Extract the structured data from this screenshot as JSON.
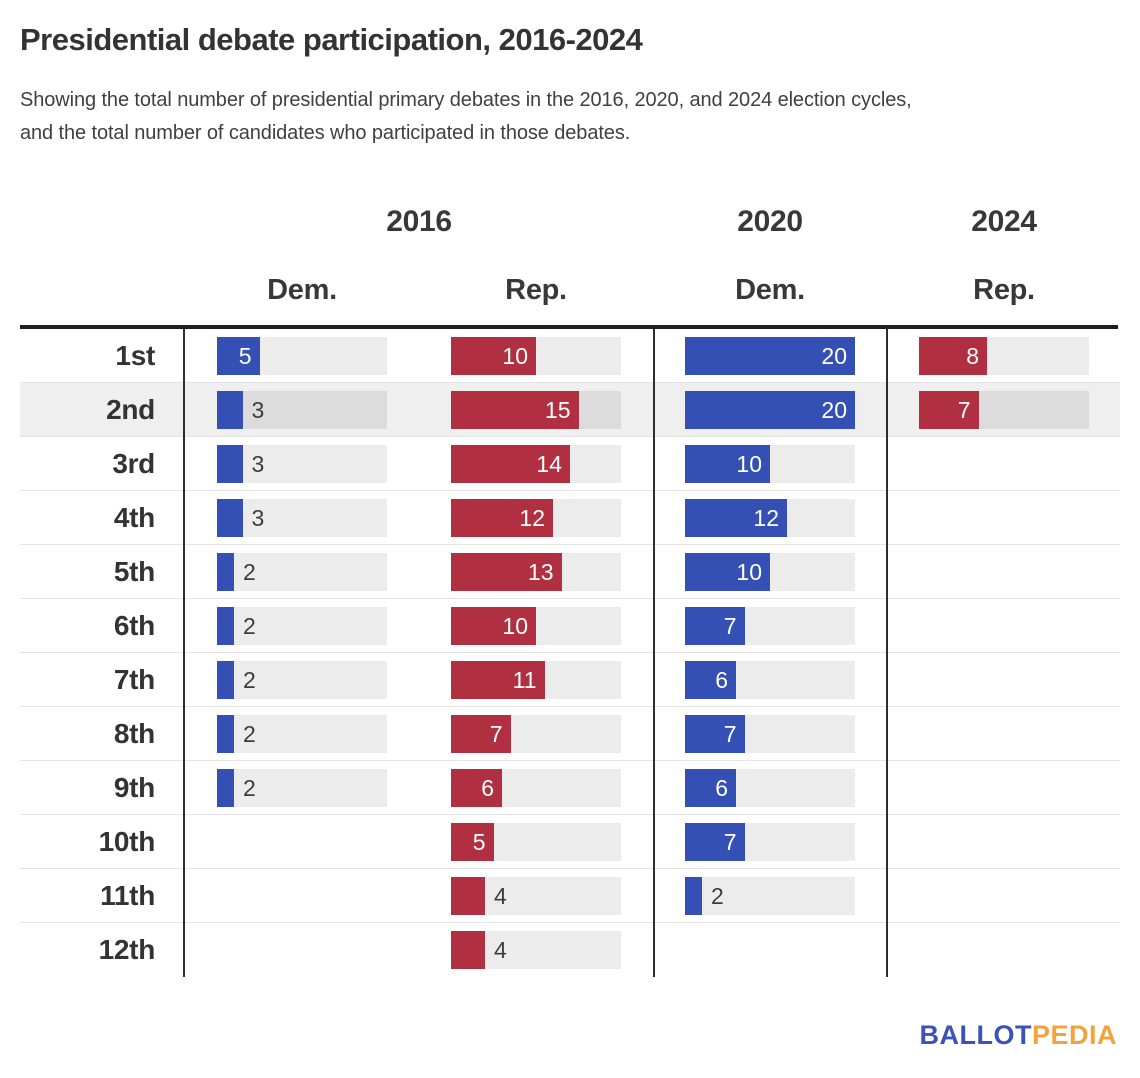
{
  "title": "Presidential debate participation, 2016-2024",
  "subtitle": {
    "line1": "Showing the total number of presidential primary debates in the 2016, 2020, and 2024 election cycles,",
    "line2": "and the total number of candidates who participated in those debates."
  },
  "header": {
    "year_groups": [
      {
        "label": "2016"
      },
      {
        "label": "2020"
      },
      {
        "label": "2024"
      }
    ],
    "party_labels": [
      "Dem.",
      "Rep.",
      "Dem.",
      "Rep."
    ]
  },
  "colors": {
    "dem": "#3450b4",
    "rep": "#b03042",
    "track": "#ececec",
    "track_highlight": "#dcdcdc",
    "row_highlight": "#efefef",
    "logo_blue": "#3c51ba",
    "logo_orange": "#f2a33c"
  },
  "logo": {
    "part1": "BALLOT",
    "part2": "PEDIA"
  },
  "chart_data": {
    "type": "bar",
    "orientation": "horizontal",
    "title": "Presidential debate participation, 2016-2024",
    "categories": [
      "1st",
      "2nd",
      "3rd",
      "4th",
      "5th",
      "6th",
      "7th",
      "8th",
      "9th",
      "10th",
      "11th",
      "12th"
    ],
    "series": [
      {
        "name": "2016 Dem.",
        "year": "2016",
        "party": "Dem.",
        "color_key": "dem",
        "values": [
          5,
          3,
          3,
          3,
          2,
          2,
          2,
          2,
          2,
          null,
          null,
          null
        ]
      },
      {
        "name": "2016 Rep.",
        "year": "2016",
        "party": "Rep.",
        "color_key": "rep",
        "values": [
          10,
          15,
          14,
          12,
          13,
          10,
          11,
          7,
          6,
          5,
          4,
          4
        ]
      },
      {
        "name": "2020 Dem.",
        "year": "2020",
        "party": "Dem.",
        "color_key": "dem",
        "values": [
          20,
          20,
          10,
          12,
          10,
          7,
          6,
          7,
          6,
          7,
          2,
          null
        ]
      },
      {
        "name": "2024 Rep.",
        "year": "2024",
        "party": "Rep.",
        "color_key": "rep",
        "values": [
          8,
          7,
          null,
          null,
          null,
          null,
          null,
          null,
          null,
          null,
          null,
          null
        ]
      }
    ],
    "xmax": 20,
    "inside_label_min": 5,
    "highlighted_category": "2nd",
    "grid": false,
    "legend": false
  }
}
